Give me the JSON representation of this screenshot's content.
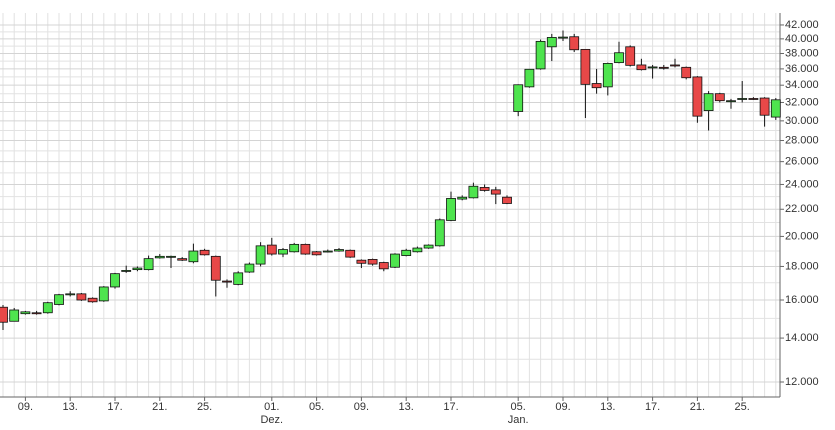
{
  "chart_data": {
    "type": "candlestick",
    "log_scale": true,
    "grid": true,
    "up_color": "#4ee44e",
    "down_color": "#e84848",
    "categories": [
      null,
      null,
      "09.",
      null,
      null,
      null,
      "13.",
      null,
      null,
      null,
      "17.",
      null,
      null,
      null,
      "21.",
      null,
      null,
      null,
      "25.",
      null,
      null,
      null,
      null,
      null,
      "01.",
      null,
      null,
      null,
      "05.",
      null,
      null,
      null,
      "09.",
      null,
      null,
      null,
      "13.",
      null,
      null,
      null,
      "17.",
      null,
      null,
      null,
      null,
      null,
      "05.",
      null,
      null,
      null,
      "09.",
      null,
      null,
      null,
      "13.",
      null,
      null,
      null,
      "17.",
      null,
      null,
      null,
      "21.",
      null,
      null,
      null,
      "25.",
      null,
      null,
      null
    ],
    "month_labels": [
      null,
      null,
      null,
      null,
      null,
      null,
      null,
      null,
      null,
      null,
      null,
      null,
      null,
      null,
      null,
      null,
      null,
      null,
      null,
      null,
      null,
      null,
      null,
      null,
      "Dez.",
      null,
      null,
      null,
      null,
      null,
      null,
      null,
      null,
      null,
      null,
      null,
      null,
      null,
      null,
      null,
      null,
      null,
      null,
      null,
      null,
      null,
      "Jan.",
      null,
      null,
      null,
      null,
      null,
      null,
      null,
      null,
      null,
      null,
      null,
      null,
      null,
      null,
      null,
      null,
      null,
      null,
      null,
      null,
      null,
      null,
      null
    ],
    "open": [
      15600,
      14850,
      15250,
      15300,
      15300,
      15750,
      16300,
      16350,
      16100,
      15950,
      16750,
      17700,
      17800,
      17800,
      18550,
      18600,
      18500,
      18300,
      19050,
      18650,
      17100,
      16900,
      17650,
      18150,
      19400,
      18800,
      18950,
      19450,
      18950,
      18950,
      19000,
      19050,
      18400,
      18450,
      18250,
      17950,
      18700,
      18950,
      19200,
      19350,
      21150,
      22800,
      22900,
      23750,
      23550,
      22950,
      31000,
      33800,
      36000,
      38900,
      40200,
      40300,
      38550,
      34200,
      33800,
      36800,
      38900,
      36500,
      36150,
      36200,
      36500,
      36200,
      35000,
      31100,
      33000,
      32100,
      32400,
      32450,
      32500,
      30400
    ],
    "high": [
      15720,
      15560,
      15400,
      15400,
      15900,
      16350,
      16500,
      16400,
      16150,
      16800,
      17600,
      18050,
      18000,
      18700,
      18800,
      18700,
      18600,
      19500,
      19150,
      18700,
      17200,
      17700,
      18250,
      19600,
      19900,
      19200,
      19550,
      19500,
      19000,
      19100,
      19200,
      19100,
      18450,
      18500,
      18300,
      18850,
      19150,
      19300,
      19450,
      21300,
      23400,
      23100,
      24150,
      24000,
      23800,
      23100,
      34100,
      36000,
      39900,
      40700,
      41200,
      40700,
      38600,
      36000,
      36800,
      39600,
      39100,
      37300,
      36500,
      36500,
      37300,
      36300,
      35100,
      33300,
      33100,
      32400,
      34500,
      32600,
      32600,
      32500
    ],
    "low": [
      14400,
      14850,
      15200,
      15200,
      15250,
      15700,
      16200,
      15950,
      15850,
      15900,
      16650,
      17600,
      17700,
      17750,
      18500,
      17900,
      18350,
      18200,
      18700,
      16200,
      16700,
      16850,
      17600,
      18000,
      18700,
      18600,
      18900,
      18750,
      18700,
      18900,
      18950,
      18550,
      17900,
      18050,
      17700,
      17900,
      18650,
      18900,
      19150,
      19300,
      21100,
      22700,
      22850,
      23400,
      22400,
      22400,
      30500,
      33700,
      35900,
      37000,
      39700,
      38200,
      30300,
      33000,
      32800,
      36700,
      36300,
      35800,
      34800,
      35900,
      36200,
      34700,
      29800,
      29000,
      32000,
      31300,
      32000,
      32300,
      29400,
      30100
    ],
    "close": [
      14800,
      15450,
      15350,
      15250,
      15850,
      16300,
      16350,
      16000,
      15900,
      16750,
      17550,
      17750,
      17900,
      18500,
      18650,
      18650,
      18400,
      19000,
      18750,
      17150,
      17050,
      17600,
      18150,
      19350,
      18800,
      19100,
      19450,
      18800,
      18750,
      19000,
      19100,
      18600,
      18200,
      18150,
      17850,
      18800,
      19050,
      19200,
      19400,
      21200,
      22850,
      22950,
      23850,
      23500,
      23200,
      22450,
      34050,
      35950,
      39650,
      40200,
      40250,
      38500,
      34100,
      33700,
      36700,
      38100,
      36450,
      35900,
      36250,
      36150,
      36400,
      34900,
      30500,
      33000,
      32200,
      32200,
      32450,
      32400,
      30600,
      32300
    ],
    "ylim": [
      11385,
      43800
    ],
    "yticks": [
      {
        "value": 12000,
        "label": "12.000"
      },
      {
        "value": 14000,
        "label": "14.000"
      },
      {
        "value": 16000,
        "label": "16.000"
      },
      {
        "value": 18000,
        "label": "18.000"
      },
      {
        "value": 20000,
        "label": "20.000"
      },
      {
        "value": 22000,
        "label": "22.000"
      },
      {
        "value": 24000,
        "label": "24.000"
      },
      {
        "value": 26000,
        "label": "26.000"
      },
      {
        "value": 28000,
        "label": "28.000"
      },
      {
        "value": 30000,
        "label": "30.000"
      },
      {
        "value": 32000,
        "label": "32.000"
      },
      {
        "value": 34000,
        "label": "34.000"
      },
      {
        "value": 36000,
        "label": "36.000"
      },
      {
        "value": 38000,
        "label": "38.000"
      },
      {
        "value": 40000,
        "label": "40.000"
      },
      {
        "value": 42000,
        "label": "42.000"
      }
    ]
  }
}
